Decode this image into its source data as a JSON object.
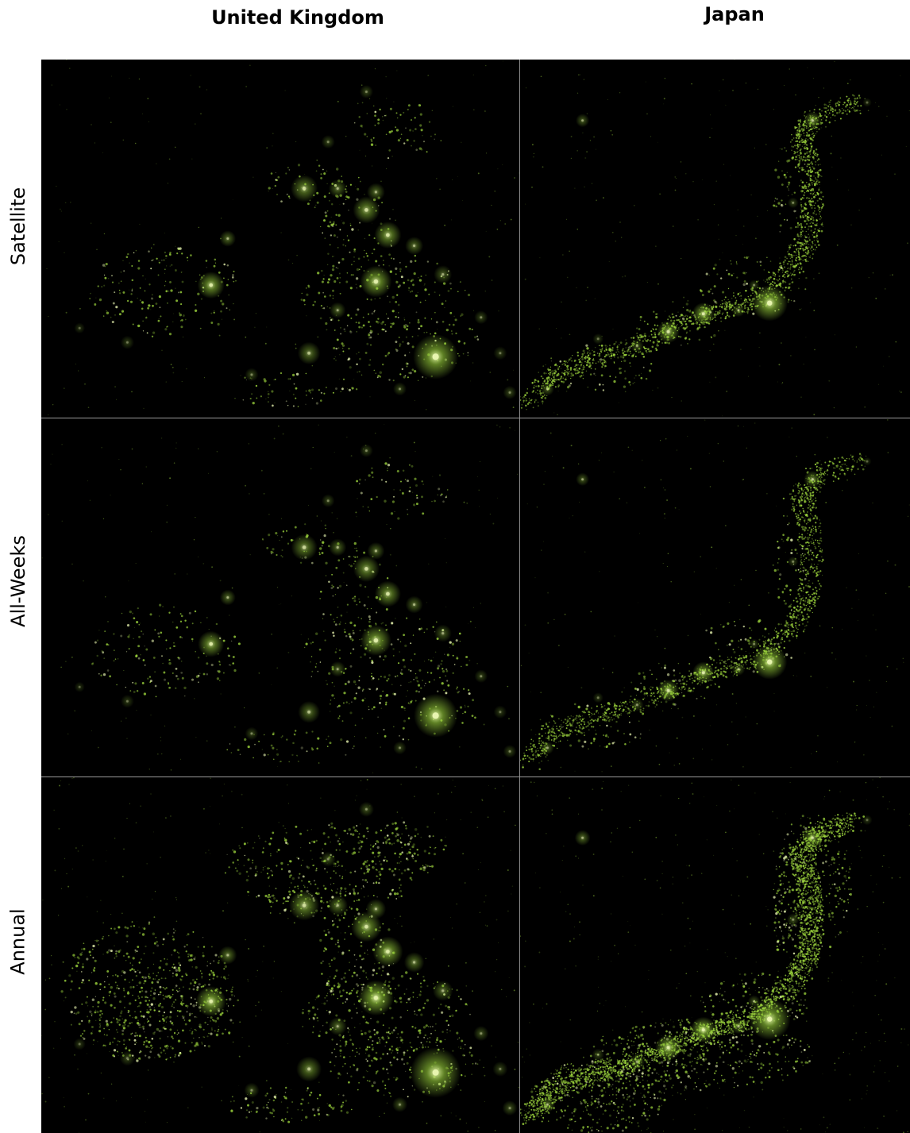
{
  "columns": [
    {
      "label": "United Kingdom"
    },
    {
      "label": "Japan"
    }
  ],
  "rows": [
    {
      "label": "Satellite"
    },
    {
      "label": "All-Weeks"
    },
    {
      "label": "Annual"
    }
  ],
  "colors": {
    "background": "#000000",
    "light": "#e8f5b0",
    "glow": "#9bd33c"
  }
}
